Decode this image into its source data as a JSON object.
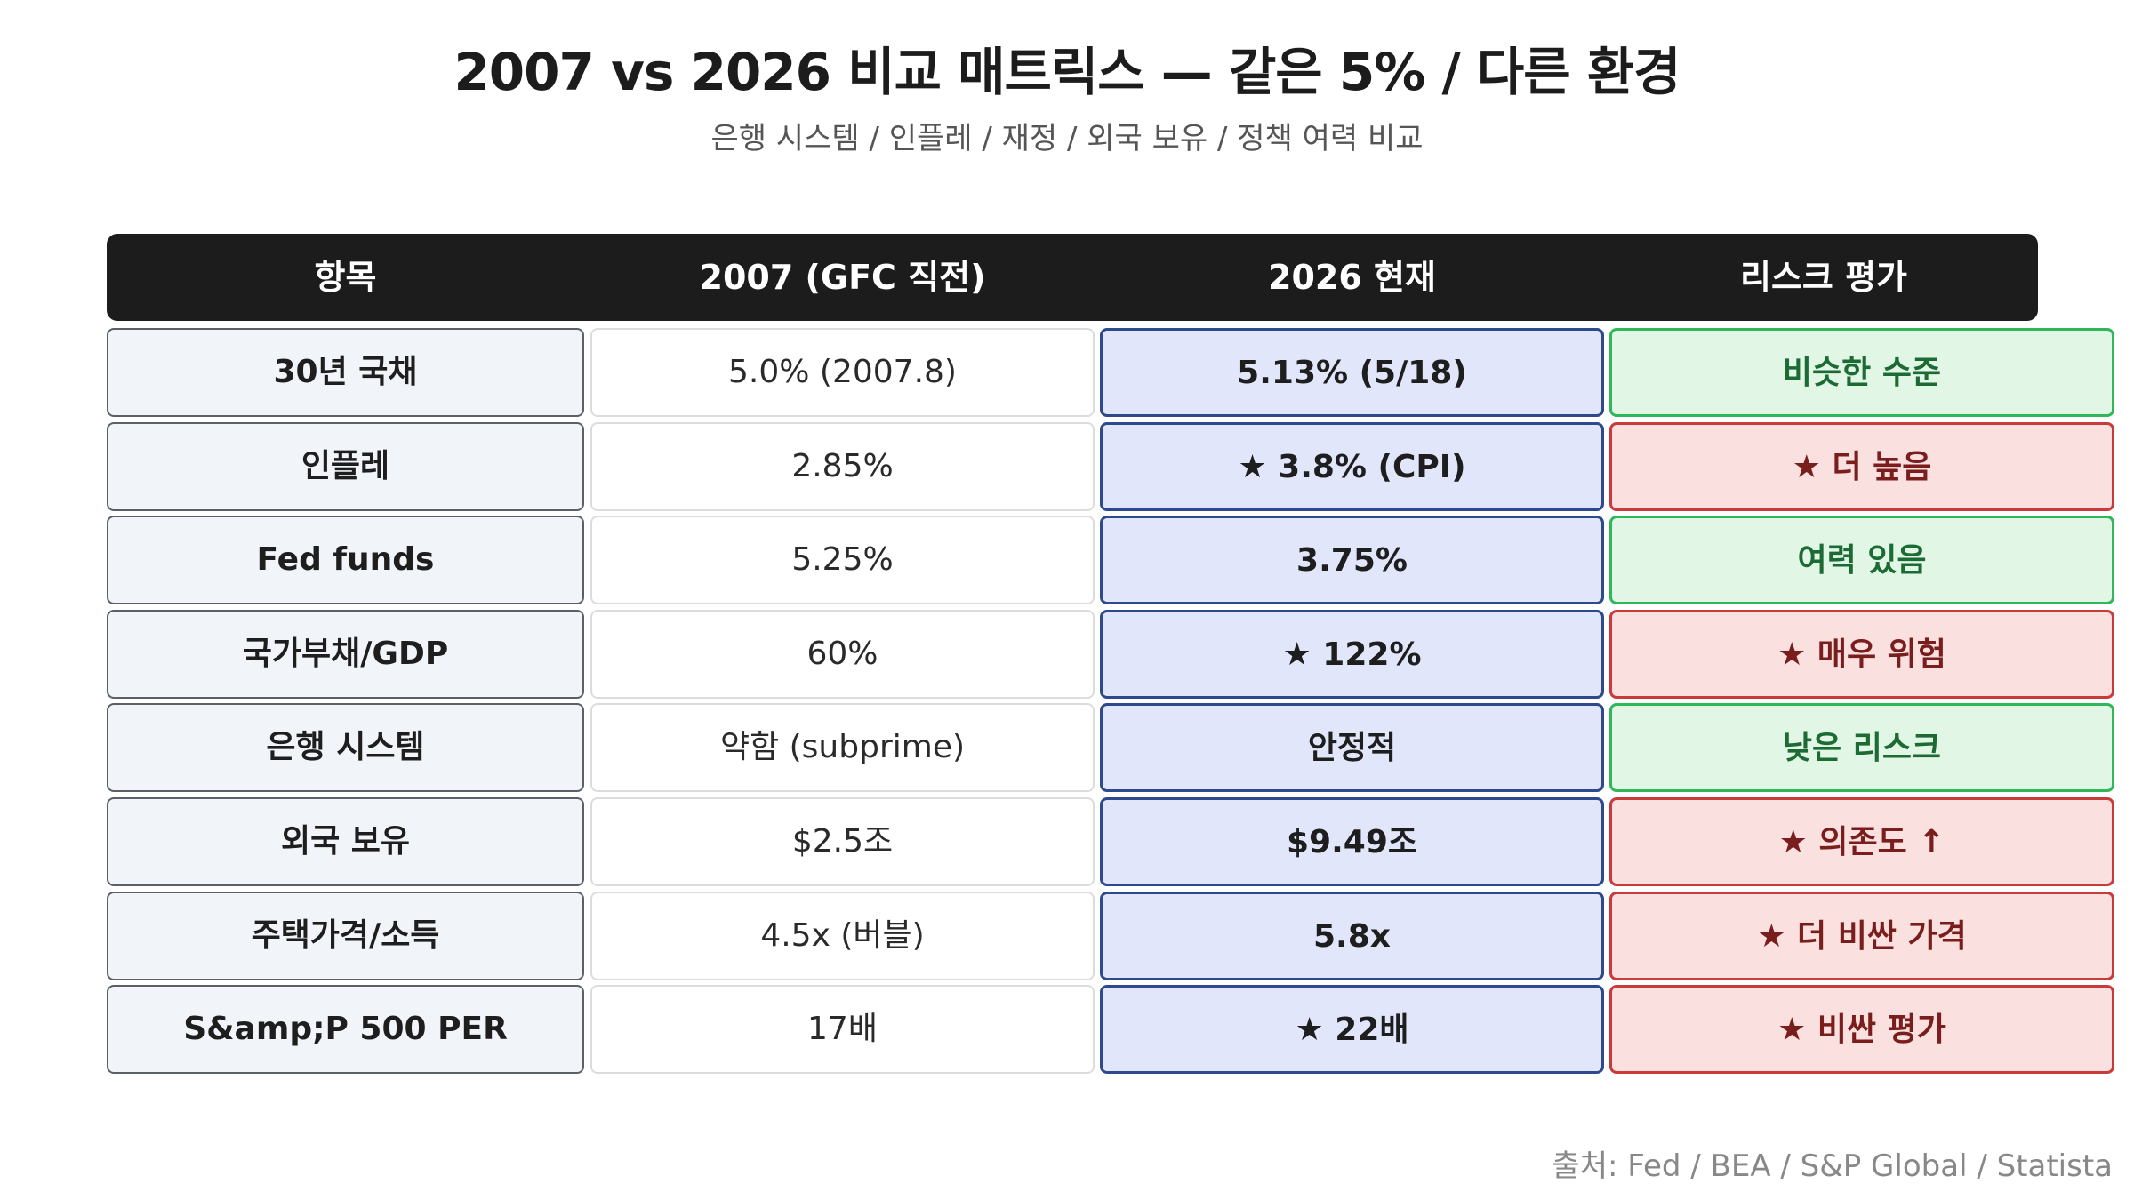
{
  "title": "2007 vs 2026 비교 매트릭스 — 같은 5% / 다른 환경",
  "subtitle": "은행 시스템 / 인플레 / 재정 / 외국 보유 / 정책 여력 비교",
  "columns": {
    "item": "항목",
    "y2007": "2007 (GFC 직전)",
    "y2026": "2026 현재",
    "risk": "리스크 평가"
  },
  "rows": [
    {
      "label": "30년 국채",
      "y2007": "5.0% (2007.8)",
      "y2026": "5.13% (5/18)",
      "risk": "비슷한 수준",
      "risk_level": "low"
    },
    {
      "label": "인플레",
      "y2007": "2.85%",
      "y2026": "★ 3.8% (CPI)",
      "risk": "★ 더 높음",
      "risk_level": "high"
    },
    {
      "label": "Fed funds",
      "y2007": "5.25%",
      "y2026": "3.75%",
      "risk": "여력 있음",
      "risk_level": "low"
    },
    {
      "label": "국가부채/GDP",
      "y2007": "60%",
      "y2026": "★ 122%",
      "risk": "★ 매우 위험",
      "risk_level": "high"
    },
    {
      "label": "은행 시스템",
      "y2007": "약함 (subprime)",
      "y2026": "안정적",
      "risk": "낮은 리스크",
      "risk_level": "low"
    },
    {
      "label": "외국 보유",
      "y2007": "$2.5조",
      "y2026": "$9.49조",
      "risk": "★ 의존도 ↑",
      "risk_level": "high"
    },
    {
      "label": "주택가격/소득",
      "y2007": "4.5x (버블)",
      "y2026": "5.8x",
      "risk": "★ 더 비싼 가격",
      "risk_level": "high"
    },
    {
      "label": "S&amp;P 500 PER",
      "y2007": "17배",
      "y2026": "★ 22배",
      "risk": "★ 비싼 평가",
      "risk_level": "high"
    }
  ],
  "source": "출처: Fed / BEA / S&P Global / Statista",
  "colors": {
    "header_bg": "#1c1c1c",
    "risk_low_bg": "#e2f6e6",
    "risk_low_border": "#2fb75a",
    "risk_high_bg": "#fbe0e0",
    "risk_high_border": "#c93a3a",
    "current_bg": "#e1e6fb",
    "current_border": "#2e4a8c"
  }
}
